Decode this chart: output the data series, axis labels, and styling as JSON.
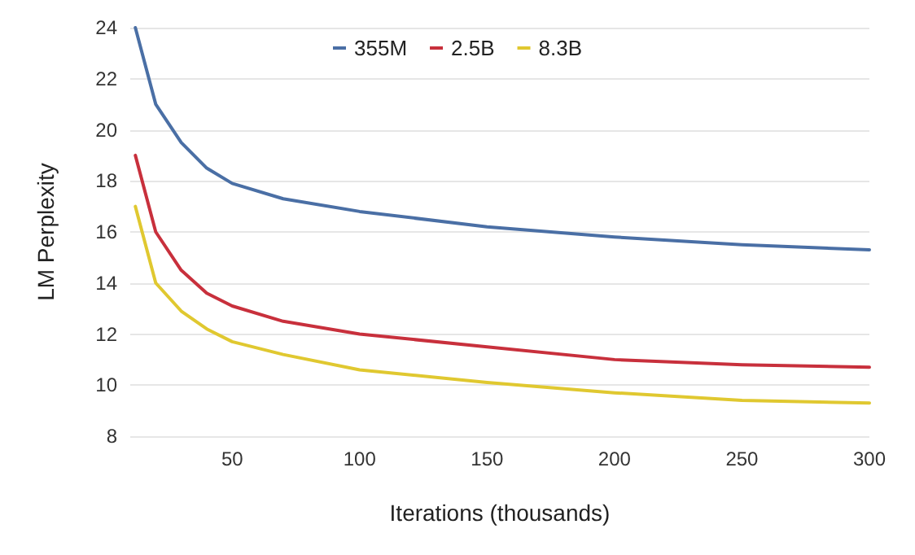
{
  "chart_data": {
    "type": "line",
    "xlabel": "Iterations (thousands)",
    "ylabel": "LM Perplexity",
    "x": [
      12,
      20,
      30,
      40,
      50,
      70,
      100,
      150,
      200,
      250,
      300
    ],
    "series": [
      {
        "name": "355M",
        "color": "#4a6fa5",
        "values": [
          24,
          21,
          19.5,
          18.5,
          17.9,
          17.3,
          16.8,
          16.2,
          15.8,
          15.5,
          15.3
        ]
      },
      {
        "name": "2.5B",
        "color": "#c8303c",
        "values": [
          19,
          16,
          14.5,
          13.6,
          13.1,
          12.5,
          12,
          11.5,
          11,
          10.8,
          10.7
        ]
      },
      {
        "name": "8.3B",
        "color": "#e0c830",
        "values": [
          17,
          14,
          12.9,
          12.2,
          11.7,
          11.2,
          10.6,
          10.1,
          9.7,
          9.4,
          9.3
        ]
      }
    ],
    "xlim": [
      10,
      300
    ],
    "xticks": [
      50,
      100,
      150,
      200,
      250,
      300
    ],
    "ylim": [
      8,
      24
    ],
    "yticks": [
      8,
      10,
      12,
      14,
      16,
      18,
      20,
      22,
      24
    ],
    "grid": "y",
    "legend": "top",
    "marker": "none",
    "line_style": "solid"
  }
}
